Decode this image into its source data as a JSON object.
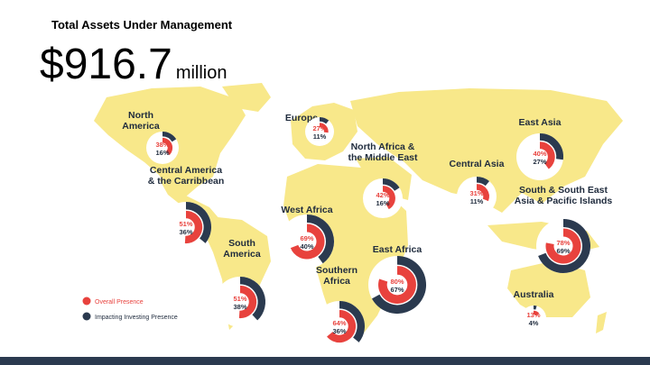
{
  "header": {
    "title": "Total Assets Under Management",
    "amount": "$916.7",
    "unit": "million"
  },
  "colors": {
    "overall": "#e8423d",
    "impacting": "#2b3a4f",
    "map": "#f8e88a",
    "label": "#1f2b3d"
  },
  "legend": {
    "overall_label": "Overall Presence",
    "impacting_label": "Impacting Investing Presence"
  },
  "chart_data": {
    "type": "donut-map",
    "title": "Total Assets Under Management",
    "series": [
      {
        "name": "Overall Presence"
      },
      {
        "name": "Impacting Investing Presence"
      }
    ],
    "regions": [
      {
        "id": "north-america",
        "name": [
          "North",
          "America"
        ],
        "overall": 38,
        "impacting": 16
      },
      {
        "id": "europe",
        "name": [
          "Europe"
        ],
        "overall": 27,
        "impacting": 11
      },
      {
        "id": "east-asia",
        "name": [
          "East Asia"
        ],
        "overall": 40,
        "impacting": 27
      },
      {
        "id": "north-africa-middle-east",
        "name": [
          "North Africa &",
          "the Middle East"
        ],
        "overall": 42,
        "impacting": 16
      },
      {
        "id": "central-asia",
        "name": [
          "Central Asia"
        ],
        "overall": 31,
        "impacting": 11
      },
      {
        "id": "central-america-caribbean",
        "name": [
          "Central America",
          "& the Carribbean"
        ],
        "overall": 51,
        "impacting": 36
      },
      {
        "id": "west-africa",
        "name": [
          "West Africa"
        ],
        "overall": 69,
        "impacting": 40
      },
      {
        "id": "south-southeast-asia-pacific",
        "name": [
          "South & South East",
          "Asia & Pacific Islands"
        ],
        "overall": 78,
        "impacting": 69
      },
      {
        "id": "south-america",
        "name": [
          "South",
          "America"
        ],
        "overall": 51,
        "impacting": 38
      },
      {
        "id": "east-africa",
        "name": [
          "East Africa"
        ],
        "overall": 80,
        "impacting": 67
      },
      {
        "id": "southern-africa",
        "name": [
          "Southern",
          "Africa"
        ],
        "overall": 64,
        "impacting": 36
      },
      {
        "id": "australia",
        "name": [
          "Australia"
        ],
        "overall": 13,
        "impacting": 4
      }
    ]
  }
}
